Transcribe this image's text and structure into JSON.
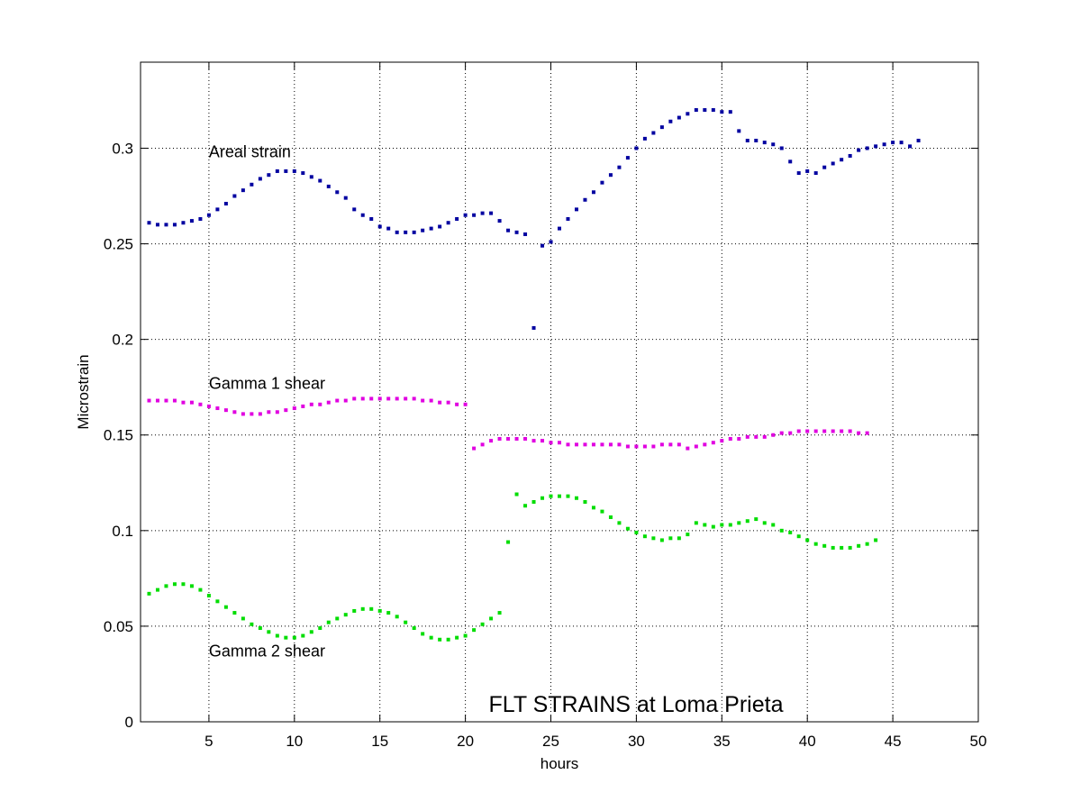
{
  "chart_data": {
    "type": "scatter",
    "title": "FLT STRAINS at Loma Prieta",
    "xlabel": "hours",
    "ylabel": "Microstrain",
    "xlim": [
      1,
      50
    ],
    "ylim": [
      0,
      0.345
    ],
    "xticks": [
      5,
      10,
      15,
      20,
      25,
      30,
      35,
      40,
      45,
      50
    ],
    "yticks": [
      0,
      0.05,
      0.1,
      0.15,
      0.2,
      0.25,
      0.3
    ],
    "ytick_labels": [
      "0",
      "0.05",
      "0.1",
      "0.15",
      "0.2",
      "0.25",
      "0.3"
    ],
    "grid": true,
    "grid_style": "dotted",
    "x_step": 0.5,
    "annotations": [
      {
        "text": "Areal  strain",
        "x": 5,
        "y": 0.298
      },
      {
        "text": "Gamma 1  shear",
        "x": 5,
        "y": 0.177
      },
      {
        "text": "Gamma 2  shear",
        "x": 5,
        "y": 0.037
      }
    ],
    "series": [
      {
        "color": "#0000a0",
        "values": [
          0.261,
          0.26,
          0.26,
          0.26,
          0.261,
          0.262,
          0.263,
          0.265,
          0.268,
          0.271,
          0.275,
          0.278,
          0.281,
          0.284,
          0.286,
          0.288,
          0.288,
          0.288,
          0.287,
          0.285,
          0.283,
          0.28,
          0.277,
          0.274,
          0.268,
          0.265,
          0.263,
          0.259,
          0.258,
          0.256,
          0.256,
          0.256,
          0.257,
          0.258,
          0.259,
          0.261,
          0.263,
          0.265,
          0.265,
          0.266,
          0.266,
          0.262,
          0.257,
          0.256,
          0.255,
          0.206,
          0.249,
          0.251,
          0.258,
          0.263,
          0.268,
          0.273,
          0.277,
          0.282,
          0.286,
          0.29,
          0.295,
          0.3,
          0.305,
          0.308,
          0.311,
          0.314,
          0.316,
          0.318,
          0.32,
          0.32,
          0.32,
          0.319,
          0.319,
          0.309,
          0.304,
          0.304,
          0.303,
          0.302,
          0.3,
          0.293,
          0.287,
          0.288,
          0.287,
          0.29,
          0.292,
          0.294,
          0.296,
          0.299,
          0.3,
          0.301,
          0.302,
          0.303,
          0.303,
          0.301,
          0.304
        ]
      },
      {
        "color": "#e000e0",
        "values": [
          0.168,
          0.168,
          0.168,
          0.168,
          0.167,
          0.167,
          0.166,
          0.165,
          0.164,
          0.163,
          0.162,
          0.161,
          0.161,
          0.161,
          0.162,
          0.162,
          0.163,
          0.164,
          0.165,
          0.166,
          0.166,
          0.167,
          0.168,
          0.168,
          0.169,
          0.169,
          0.169,
          0.169,
          0.169,
          0.169,
          0.169,
          0.169,
          0.168,
          0.168,
          0.167,
          0.167,
          0.166,
          0.166,
          0.143,
          0.145,
          0.147,
          0.148,
          0.148,
          0.148,
          0.148,
          0.147,
          0.147,
          0.146,
          0.146,
          0.145,
          0.145,
          0.145,
          0.145,
          0.145,
          0.145,
          0.145,
          0.144,
          0.144,
          0.144,
          0.144,
          0.145,
          0.145,
          0.145,
          0.143,
          0.144,
          0.145,
          0.146,
          0.147,
          0.148,
          0.148,
          0.149,
          0.149,
          0.149,
          0.15,
          0.151,
          0.151,
          0.152,
          0.152,
          0.152,
          0.152,
          0.152,
          0.152,
          0.152,
          0.151,
          0.151
        ]
      },
      {
        "color": "#00dd00",
        "values": [
          0.067,
          0.069,
          0.071,
          0.072,
          0.072,
          0.071,
          0.069,
          0.066,
          0.063,
          0.06,
          0.057,
          0.054,
          0.051,
          0.049,
          0.047,
          0.045,
          0.044,
          0.044,
          0.045,
          0.047,
          0.049,
          0.052,
          0.054,
          0.056,
          0.058,
          0.059,
          0.059,
          0.058,
          0.057,
          0.055,
          0.052,
          0.049,
          0.046,
          0.044,
          0.043,
          0.043,
          0.044,
          0.045,
          0.048,
          0.051,
          0.054,
          0.057,
          0.094,
          0.119,
          0.113,
          0.115,
          0.117,
          0.118,
          0.118,
          0.118,
          0.117,
          0.115,
          0.112,
          0.11,
          0.107,
          0.104,
          0.101,
          0.099,
          0.097,
          0.096,
          0.095,
          0.096,
          0.096,
          0.098,
          0.104,
          0.103,
          0.102,
          0.103,
          0.103,
          0.104,
          0.105,
          0.106,
          0.104,
          0.103,
          0.1,
          0.099,
          0.097,
          0.095,
          0.093,
          0.092,
          0.091,
          0.091,
          0.091,
          0.092,
          0.093,
          0.095
        ]
      }
    ]
  }
}
